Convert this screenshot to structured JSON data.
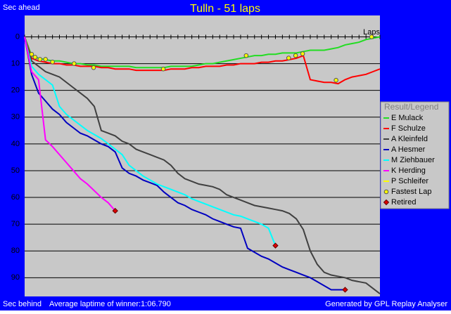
{
  "chart_data": {
    "type": "line",
    "title": "Tulln - 51 laps",
    "y_label_top": "Sec ahead",
    "y_label_bottom": "Sec behind",
    "x_label": "Laps",
    "footer_left": "Average laptime of winner:1:06.790",
    "footer_right": "Generated by GPL Replay Analyser",
    "legend_title": "Result/Legend",
    "xlim": [
      0,
      51
    ],
    "ylim": [
      97,
      -8
    ],
    "yticks": [
      0,
      10,
      20,
      30,
      40,
      50,
      60,
      70,
      80,
      90
    ],
    "xticks": [
      0,
      1,
      2,
      3,
      4,
      5,
      6,
      7,
      8,
      9,
      10,
      11,
      12,
      13,
      14,
      15,
      16,
      17,
      18,
      19,
      20,
      21,
      22,
      23,
      24,
      25,
      26,
      27,
      28,
      29,
      30,
      31,
      32,
      33,
      34,
      35,
      36,
      37,
      38,
      39,
      40,
      41,
      42,
      43,
      44,
      45,
      46,
      47,
      48,
      49,
      50,
      51
    ],
    "grid": true,
    "x": [
      0,
      1,
      2,
      3,
      4,
      5,
      6,
      7,
      8,
      9,
      10,
      11,
      12,
      13,
      14,
      15,
      16,
      17,
      18,
      19,
      20,
      21,
      22,
      23,
      24,
      25,
      26,
      27,
      28,
      29,
      30,
      31,
      32,
      33,
      34,
      35,
      36,
      37,
      38,
      39,
      40,
      41,
      42,
      43,
      44,
      45,
      46,
      47,
      48,
      49,
      50,
      51
    ],
    "series": [
      {
        "name": "E Mulack",
        "color": "#22dd22",
        "values": [
          0,
          7,
          8,
          8.5,
          9,
          9,
          9.5,
          10,
          10,
          10.5,
          10.5,
          11,
          11,
          11,
          11,
          11,
          11.5,
          11.5,
          11.5,
          11.5,
          11.5,
          11,
          11,
          11,
          11,
          10.5,
          10,
          10,
          9.5,
          9,
          8.5,
          8,
          7.5,
          7,
          7,
          6.5,
          6.5,
          6,
          6,
          6,
          5.5,
          5,
          5,
          5,
          4.5,
          4,
          3,
          2.5,
          2,
          1,
          0.5,
          0
        ]
      },
      {
        "name": "F Schulze",
        "color": "#ff0000",
        "values": [
          0,
          8,
          9,
          9.5,
          10,
          10,
          10.5,
          10.5,
          11,
          11,
          11,
          11.5,
          11.5,
          12,
          12,
          12,
          12.5,
          12.5,
          12.5,
          12.5,
          12.5,
          12,
          12,
          12,
          11.5,
          11.5,
          11,
          11,
          11,
          10.5,
          10.5,
          10,
          10,
          10,
          9.5,
          9.5,
          9,
          9,
          8.5,
          8,
          7,
          16,
          16.5,
          17,
          17,
          17.5,
          16,
          15,
          14.5,
          14,
          13,
          12
        ]
      },
      {
        "name": "A Kleinfeld",
        "color": "#404040",
        "values": [
          0,
          9,
          11,
          13,
          14,
          15,
          17,
          19,
          21,
          23,
          26,
          35,
          36,
          37,
          39,
          40,
          42,
          43,
          44,
          45,
          46,
          48,
          51,
          53,
          54,
          55,
          55.5,
          56,
          57,
          59,
          60,
          61,
          62,
          63,
          63.5,
          64,
          64.5,
          65,
          66,
          68,
          72,
          80,
          85,
          88,
          89,
          89.5,
          90,
          91,
          91.5,
          92,
          94,
          96
        ]
      },
      {
        "name": "A Hesmer",
        "color": "#0000c0",
        "values": [
          0,
          14,
          21,
          24,
          27,
          29,
          32,
          34,
          36,
          37,
          38.5,
          40,
          41,
          43,
          49,
          51,
          52,
          53.5,
          54.5,
          55.5,
          58,
          60,
          62,
          63,
          64.5,
          65.5,
          66.5,
          68,
          69,
          70,
          71,
          71.5,
          79,
          80.5,
          82,
          83,
          84.5,
          86,
          87,
          88,
          89,
          90,
          91.5,
          93,
          94.5,
          94.5,
          94.5,
          null,
          null,
          null,
          null,
          null
        ]
      },
      {
        "name": "M Ziehbauer",
        "color": "#00ffff",
        "values": [
          0,
          11,
          14,
          16,
          18,
          26,
          29,
          31,
          33,
          35,
          36.5,
          38,
          40,
          42,
          44,
          48,
          50,
          52,
          53.5,
          55,
          56,
          57,
          58,
          59,
          60.5,
          61.5,
          62.5,
          63.5,
          64.5,
          65.5,
          66.5,
          67,
          68,
          69,
          70,
          71.5,
          78,
          null,
          null,
          null,
          null,
          null,
          null,
          null,
          null,
          null,
          null,
          null,
          null,
          null,
          null,
          null
        ]
      },
      {
        "name": "K Herding",
        "color": "#ff00ff",
        "values": [
          0,
          13,
          16,
          38.5,
          41,
          44,
          47,
          50,
          53,
          55,
          57.5,
          60,
          62,
          65,
          null,
          null,
          null,
          null,
          null,
          null,
          null,
          null,
          null,
          null,
          null,
          null,
          null,
          null,
          null,
          null,
          null,
          null,
          null,
          null,
          null,
          null,
          null,
          null,
          null,
          null,
          null,
          null,
          null,
          null,
          null,
          null,
          null,
          null,
          null,
          null,
          null,
          null
        ]
      },
      {
        "name": "P Schleifer",
        "color": "#ffff00",
        "values": [
          null,
          null,
          null,
          null,
          null,
          null,
          null,
          null,
          null,
          null,
          null,
          null,
          null,
          null,
          null,
          null,
          null,
          null,
          null,
          null,
          null,
          null,
          null,
          null,
          null,
          null,
          null,
          null,
          null,
          null,
          null,
          null,
          null,
          null,
          null,
          null,
          null,
          null,
          null,
          null,
          null,
          null,
          null,
          null,
          null,
          null,
          null,
          null,
          null,
          null,
          null,
          null
        ]
      }
    ],
    "markers": [
      {
        "name": "Fastest Lap",
        "color": "#ffff00",
        "marker": "circle",
        "x": [
          1,
          1.5,
          2.2,
          3,
          4,
          7.1,
          9.9,
          19.9,
          31.8,
          37.9,
          38.9,
          39.9,
          44.7,
          49.8
        ],
        "values": [
          6.5,
          7.6,
          8.4,
          8.4,
          9.4,
          10,
          11.5,
          12,
          7,
          7.9,
          7,
          6.3,
          16.2,
          0
        ]
      },
      {
        "name": "Retired",
        "color": "#dd0000",
        "marker": "diamond",
        "x": [
          13,
          36,
          46
        ],
        "values": [
          65,
          78,
          94.5
        ]
      }
    ]
  }
}
